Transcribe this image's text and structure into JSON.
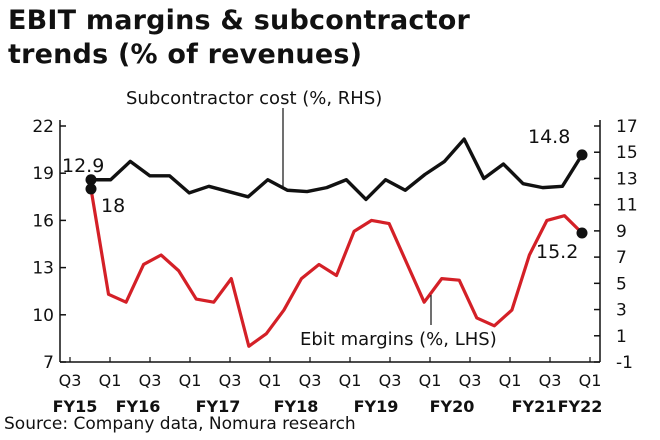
{
  "chart_data": {
    "type": "line",
    "title_lines": [
      "EBIT margins & subcontractor",
      "trends (% of  revenues)"
    ],
    "x_labels": [
      "Q3",
      "Q1",
      "Q3",
      "Q1",
      "Q3",
      "Q1",
      "Q3",
      "Q1",
      "Q3",
      "Q1",
      "Q3",
      "Q1",
      "Q3",
      "Q1"
    ],
    "fy_labels": [
      "FY15",
      "FY16",
      "FY17",
      "FY18",
      "FY19",
      "FY20",
      "FY21",
      "FY22"
    ],
    "left_axis": {
      "ticks": [
        "7",
        "10",
        "13",
        "16",
        "19",
        "22"
      ],
      "ylim": [
        7,
        22
      ]
    },
    "right_axis": {
      "ticks": [
        "-1",
        "1",
        "3",
        "5",
        "7",
        "9",
        "11",
        "13",
        "15",
        "17"
      ],
      "ylim": [
        -1,
        17
      ]
    },
    "series": [
      {
        "name": "Subcontractor cost (%, RHS)",
        "axis": "right",
        "color": "#111111",
        "values": [
          12.9,
          12.9,
          14.3,
          13.2,
          13.2,
          11.9,
          12.4,
          12.0,
          11.6,
          12.9,
          12.1,
          12.0,
          12.3,
          12.9,
          11.4,
          12.9,
          12.1,
          13.3,
          14.3,
          16.0,
          13.0,
          14.1,
          12.6,
          12.3,
          12.4,
          14.8
        ],
        "end_label": "14.8"
      },
      {
        "name": "Ebit margins (%, LHS)",
        "axis": "left",
        "color": "#d42027",
        "values": [
          18.0,
          11.3,
          10.8,
          13.2,
          13.8,
          12.8,
          11.0,
          10.8,
          12.3,
          8.0,
          8.8,
          10.3,
          12.3,
          13.2,
          12.5,
          15.3,
          16.0,
          15.8,
          13.3,
          10.8,
          12.3,
          12.2,
          9.8,
          9.3,
          10.3,
          13.8,
          16.0,
          16.3,
          15.2
        ],
        "start_label": "18",
        "end_label": "15.2"
      }
    ],
    "annotations": {
      "subcontractor": "Subcontractor cost (%, RHS)",
      "ebit": "Ebit margins (%, LHS)",
      "sub_start": "12.9"
    },
    "grid": false
  },
  "source": "Source: Company data, Nomura research"
}
